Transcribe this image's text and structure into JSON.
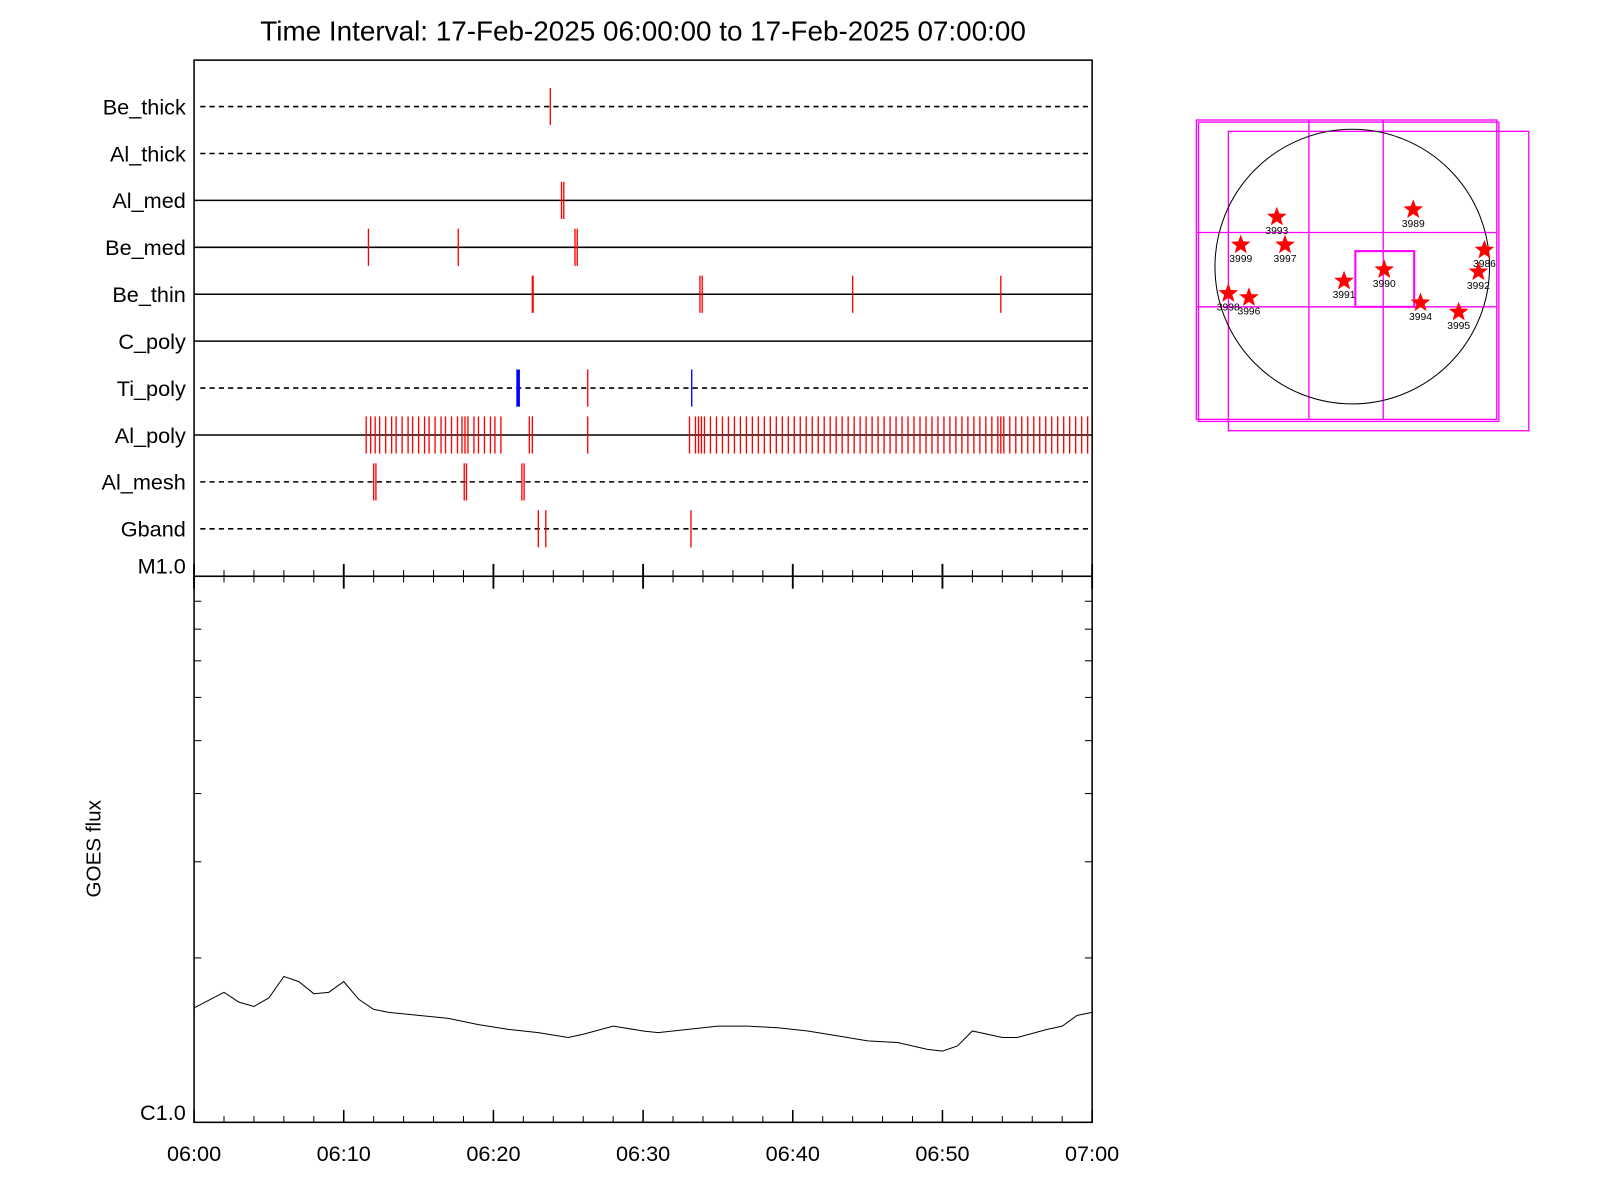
{
  "chart_data": [
    {
      "type": "events",
      "title": "Time Interval: 17-Feb-2025 06:00:00 to 17-Feb-2025 07:00:00",
      "xlim": [
        0,
        60
      ],
      "rows": [
        {
          "name": "Be_thick",
          "style": "dashed",
          "color": "#ff0000",
          "times": [
            23.8
          ]
        },
        {
          "name": "Al_thick",
          "style": "dashed",
          "color": "#ff0000",
          "times": []
        },
        {
          "name": "Al_med",
          "style": "solid",
          "color": "#ff0000",
          "times": [
            24.55,
            24.7
          ]
        },
        {
          "name": "Be_med",
          "style": "solid",
          "color": "#ff0000",
          "times": [
            11.65,
            17.65,
            25.45,
            25.6
          ]
        },
        {
          "name": "Be_thin",
          "style": "solid",
          "color": "#ff0000",
          "times": [
            22.6,
            22.65,
            33.8,
            33.95,
            44.0,
            53.9
          ]
        },
        {
          "name": "C_poly",
          "style": "solid",
          "color": "#ff0000",
          "times": []
        },
        {
          "name": "Ti_poly",
          "style": "dashed",
          "color": "#ff0000",
          "times": [
            21.65,
            26.3,
            33.25
          ],
          "colors": [
            "#0000ff",
            "#ff0000",
            "#0000ff"
          ]
        },
        {
          "name": "Al_poly",
          "style": "solid",
          "color": "#ff0000",
          "times": [
            11.5,
            11.8,
            12.1,
            12.4,
            12.8,
            13.2,
            13.5,
            13.9,
            14.3,
            14.6,
            15.0,
            15.4,
            15.7,
            16.1,
            16.5,
            16.8,
            17.2,
            17.6,
            17.9,
            18.1,
            18.3,
            18.7,
            19.0,
            19.4,
            19.8,
            20.1,
            20.5,
            22.4,
            22.6,
            26.3,
            33.1,
            33.5,
            33.7,
            33.9,
            34.1,
            34.5,
            34.9,
            35.3,
            35.7,
            36.1,
            36.5,
            36.9,
            37.3,
            37.7,
            38.1,
            38.5,
            38.9,
            39.3,
            39.7,
            40.1,
            40.5,
            40.9,
            41.3,
            41.7,
            42.1,
            42.5,
            42.9,
            43.3,
            43.7,
            44.1,
            44.5,
            44.9,
            45.3,
            45.7,
            46.1,
            46.5,
            46.9,
            47.3,
            47.7,
            48.1,
            48.5,
            48.9,
            49.3,
            49.7,
            50.1,
            50.5,
            50.9,
            51.3,
            51.7,
            52.1,
            52.5,
            52.9,
            53.3,
            53.7,
            53.9,
            54.1,
            54.5,
            54.9,
            55.3,
            55.7,
            56.1,
            56.5,
            56.9,
            57.3,
            57.7,
            58.1,
            58.5,
            58.9,
            59.3,
            59.7
          ]
        },
        {
          "name": "Al_mesh",
          "style": "dashed",
          "color": "#ff0000",
          "times": [
            12.0,
            12.15,
            18.05,
            18.2,
            21.9,
            22.05
          ]
        },
        {
          "name": "Gband",
          "style": "dashed",
          "color": "#ff0000",
          "times": [
            23.0,
            23.5,
            33.2
          ]
        }
      ]
    },
    {
      "type": "line",
      "y_label": "GOES flux",
      "log_scale": true,
      "color": "#000000",
      "xlim": [
        0,
        60
      ],
      "xticks": [
        {
          "value": 0,
          "label": "06:00"
        },
        {
          "value": 10,
          "label": "06:10"
        },
        {
          "value": 20,
          "label": "06:20"
        },
        {
          "value": 30,
          "label": "06:30"
        },
        {
          "value": 40,
          "label": "06:40"
        },
        {
          "value": 50,
          "label": "06:50"
        },
        {
          "value": 60,
          "label": "07:00"
        }
      ],
      "xminor": [
        2,
        4,
        6,
        8,
        12,
        14,
        16,
        18,
        22,
        24,
        26,
        28,
        32,
        34,
        36,
        38,
        42,
        44,
        46,
        48,
        52,
        54,
        56,
        58
      ],
      "ylim": [
        1e-06,
        1e-05
      ],
      "yticks": [
        {
          "value": 1e-06,
          "label": "C1.0"
        },
        {
          "value": 1e-05,
          "label": "M1.0"
        }
      ],
      "yminor": [
        2e-06,
        3e-06,
        4e-06,
        5e-06,
        6e-06,
        7e-06,
        8e-06,
        9e-06
      ],
      "x": [
        0,
        2,
        3,
        4,
        5,
        6,
        7,
        8,
        9,
        10,
        11,
        12,
        13,
        15,
        17,
        19,
        21,
        23,
        25,
        26,
        28,
        30,
        31,
        33,
        35,
        37,
        39,
        41,
        43,
        45,
        47,
        49,
        50,
        51,
        52,
        54,
        55,
        57,
        58,
        59,
        60
      ],
      "values": [
        1.62e-06,
        1.73e-06,
        1.66e-06,
        1.63e-06,
        1.69e-06,
        1.85e-06,
        1.81e-06,
        1.72e-06,
        1.73e-06,
        1.81e-06,
        1.68e-06,
        1.61e-06,
        1.59e-06,
        1.57e-06,
        1.55e-06,
        1.51e-06,
        1.48e-06,
        1.46e-06,
        1.43e-06,
        1.45e-06,
        1.5e-06,
        1.47e-06,
        1.46e-06,
        1.48e-06,
        1.5e-06,
        1.5e-06,
        1.49e-06,
        1.47e-06,
        1.44e-06,
        1.41e-06,
        1.4e-06,
        1.36e-06,
        1.35e-06,
        1.38e-06,
        1.47e-06,
        1.43e-06,
        1.43e-06,
        1.48e-06,
        1.5e-06,
        1.57e-06,
        1.59e-06
      ]
    },
    {
      "type": "map",
      "color": "#ff0000",
      "xlim": [
        -1000,
        1000
      ],
      "ylim": [
        -1000,
        1000
      ],
      "regions": [
        {
          "label": "3989",
          "x": 431,
          "y": 402
        },
        {
          "label": "3993",
          "x": -533,
          "y": 350
        },
        {
          "label": "3999",
          "x": -788,
          "y": 153
        },
        {
          "label": "3997",
          "x": -475,
          "y": 153
        },
        {
          "label": "3986",
          "x": 934,
          "y": 117
        },
        {
          "label": "3992",
          "x": 891,
          "y": -37
        },
        {
          "label": "3990",
          "x": 226,
          "y": -22
        },
        {
          "label": "3991",
          "x": -58,
          "y": -102
        },
        {
          "label": "3998",
          "x": -876,
          "y": -190
        },
        {
          "label": "3996",
          "x": -730,
          "y": -219
        },
        {
          "label": "3994",
          "x": 482,
          "y": -256
        },
        {
          "label": "3995",
          "x": 752,
          "y": -321
        }
      ]
    }
  ]
}
